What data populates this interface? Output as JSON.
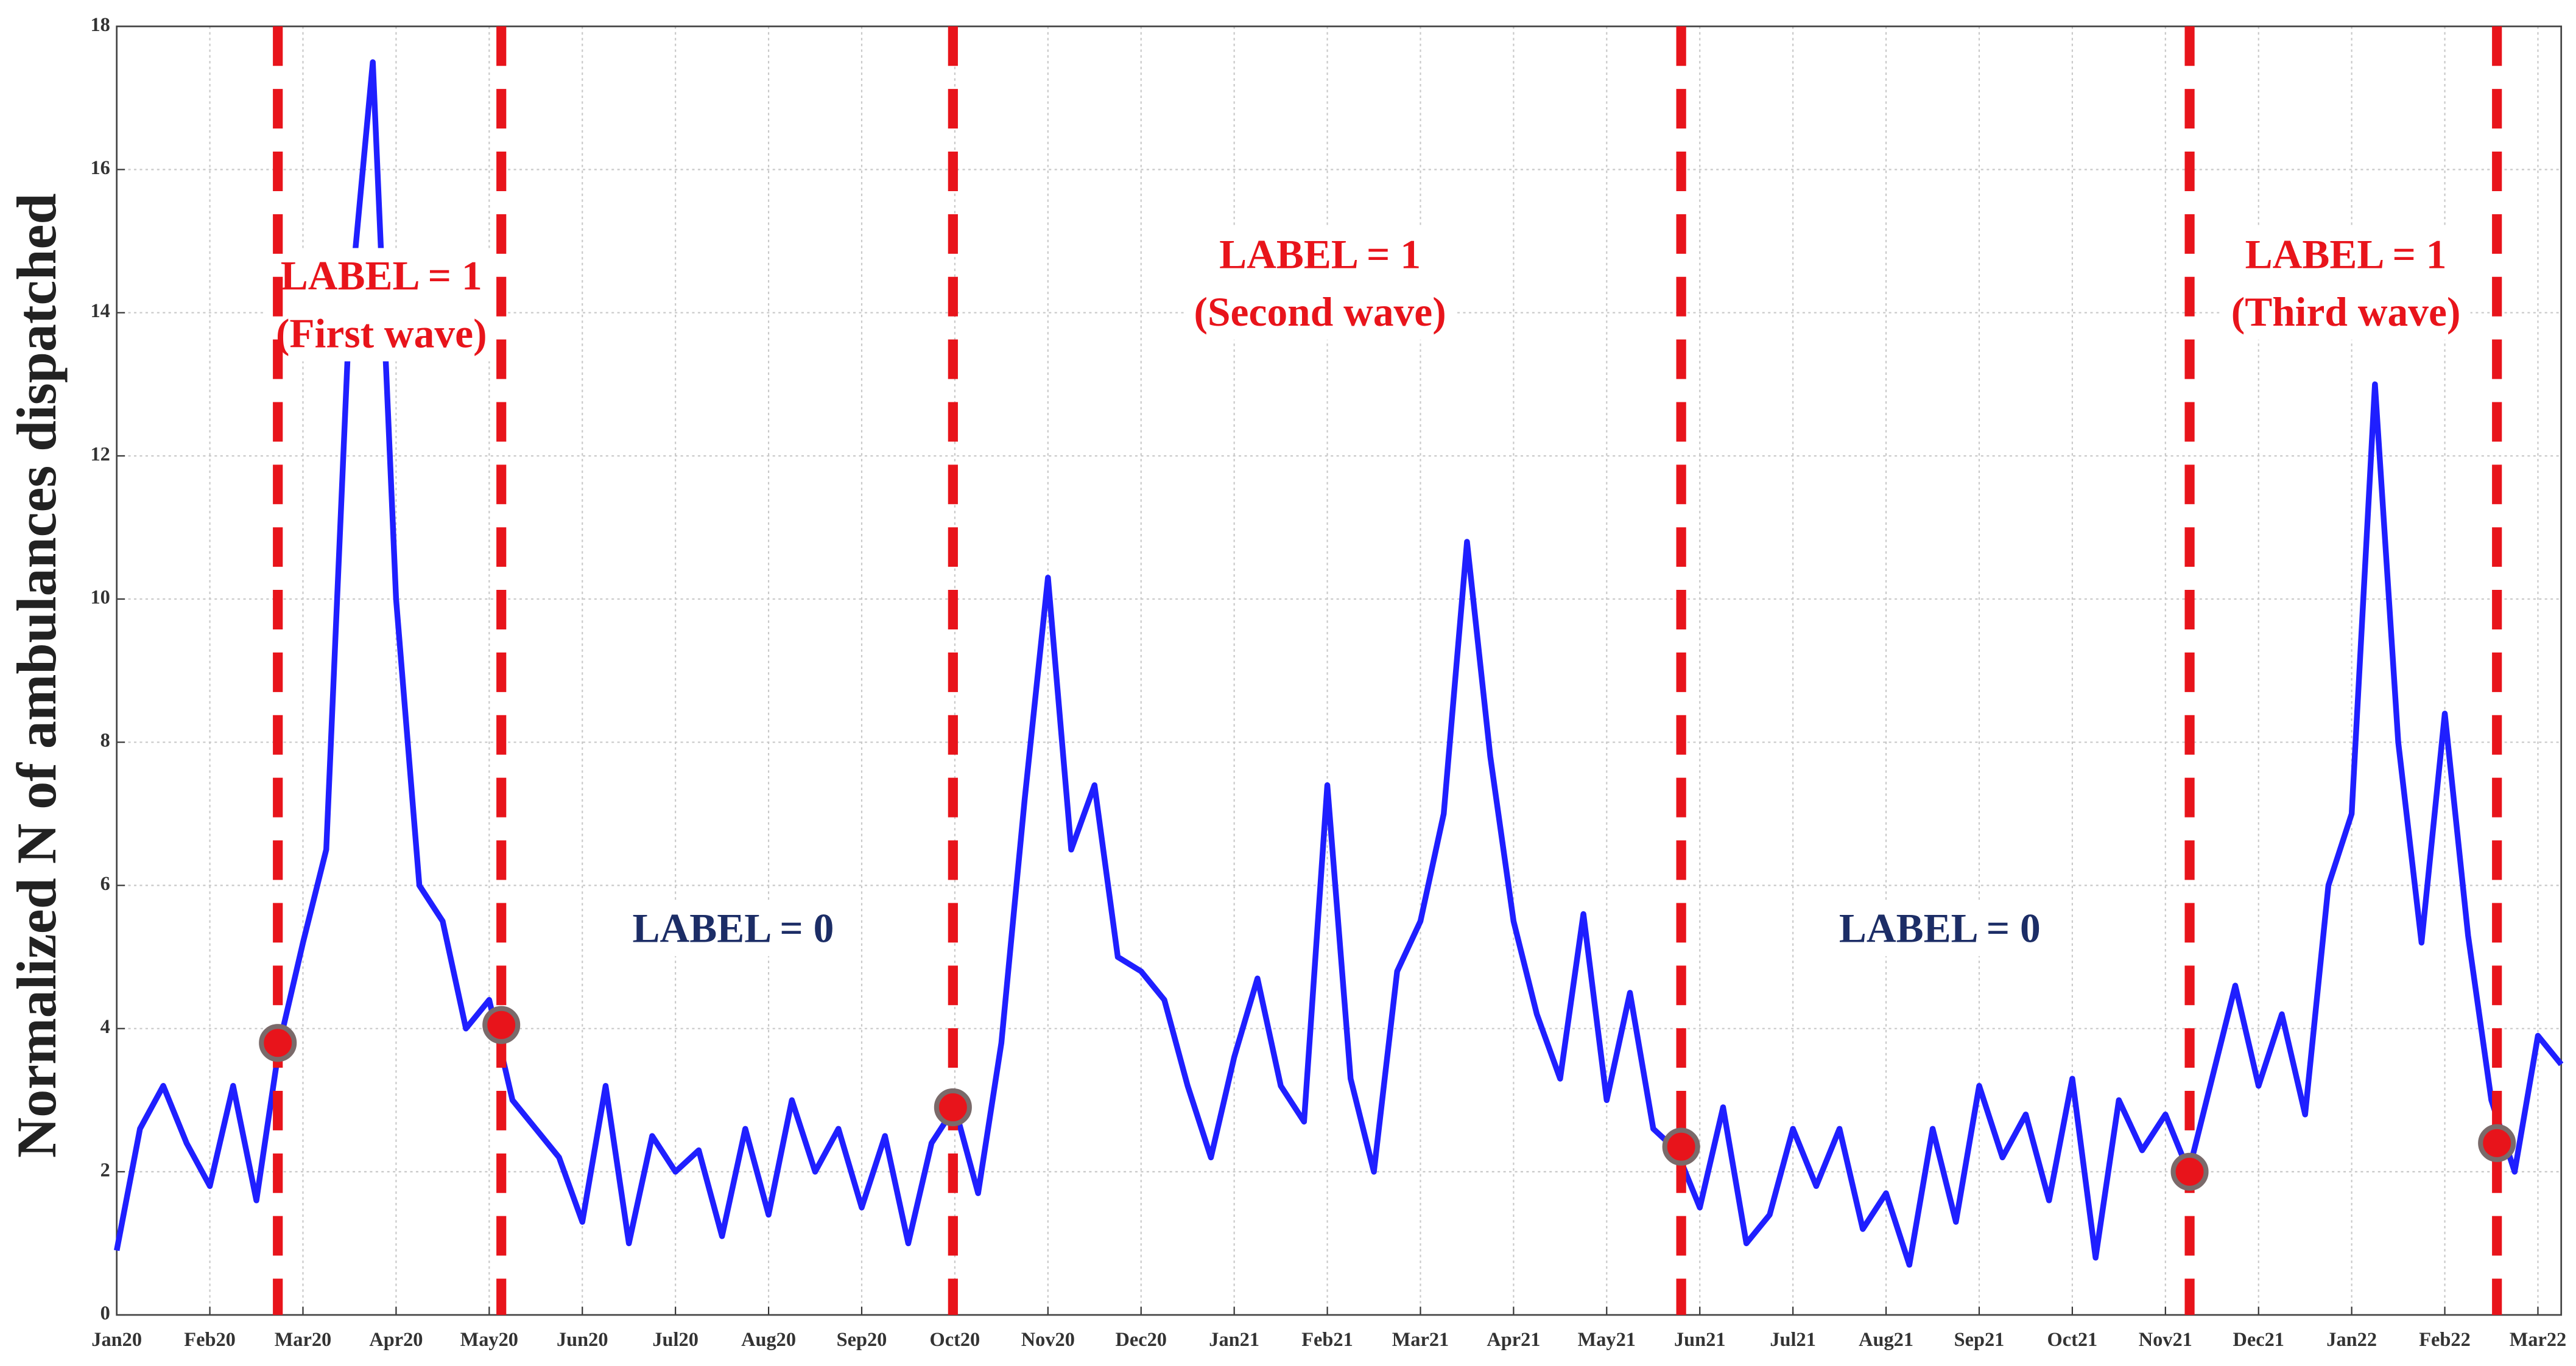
{
  "chart_data": {
    "type": "line",
    "ylabel": "Normalized N of ambulances dispatched",
    "color": "#1f1fff",
    "grid": true,
    "xlim": [
      0,
      26.25
    ],
    "ylim": [
      0,
      18
    ],
    "yticks": [
      0,
      2,
      4,
      6,
      8,
      10,
      12,
      14,
      16,
      18
    ],
    "xticks": [
      {
        "value": 0,
        "label": "Jan20"
      },
      {
        "value": 1,
        "label": "Feb20"
      },
      {
        "value": 2,
        "label": "Mar20"
      },
      {
        "value": 3,
        "label": "Apr20"
      },
      {
        "value": 4,
        "label": "May20"
      },
      {
        "value": 5,
        "label": "Jun20"
      },
      {
        "value": 6,
        "label": "Jul20"
      },
      {
        "value": 7,
        "label": "Aug20"
      },
      {
        "value": 8,
        "label": "Sep20"
      },
      {
        "value": 9,
        "label": "Oct20"
      },
      {
        "value": 10,
        "label": "Nov20"
      },
      {
        "value": 11,
        "label": "Dec20"
      },
      {
        "value": 12,
        "label": "Jan21"
      },
      {
        "value": 13,
        "label": "Feb21"
      },
      {
        "value": 14,
        "label": "Mar21"
      },
      {
        "value": 15,
        "label": "Apr21"
      },
      {
        "value": 16,
        "label": "May21"
      },
      {
        "value": 17,
        "label": "Jun21"
      },
      {
        "value": 18,
        "label": "Jul21"
      },
      {
        "value": 19,
        "label": "Aug21"
      },
      {
        "value": 20,
        "label": "Sep21"
      },
      {
        "value": 21,
        "label": "Oct21"
      },
      {
        "value": 22,
        "label": "Nov21"
      },
      {
        "value": 23,
        "label": "Dec21"
      },
      {
        "value": 24,
        "label": "Jan22"
      },
      {
        "value": 25,
        "label": "Feb22"
      },
      {
        "value": 26,
        "label": "Mar22"
      }
    ],
    "x": [
      0,
      0.25,
      0.5,
      0.75,
      1,
      1.25,
      1.5,
      1.75,
      2,
      2.25,
      2.5,
      2.75,
      3,
      3.25,
      3.5,
      3.75,
      4,
      4.25,
      4.5,
      4.75,
      5,
      5.25,
      5.5,
      5.75,
      6,
      6.25,
      6.5,
      6.75,
      7,
      7.25,
      7.5,
      7.75,
      8,
      8.25,
      8.5,
      8.75,
      9,
      9.25,
      9.5,
      9.75,
      10,
      10.25,
      10.5,
      10.75,
      11,
      11.25,
      11.5,
      11.75,
      12,
      12.25,
      12.5,
      12.75,
      13,
      13.25,
      13.5,
      13.75,
      14,
      14.25,
      14.5,
      14.75,
      15,
      15.25,
      15.5,
      15.75,
      16,
      16.25,
      16.5,
      16.75,
      17,
      17.25,
      17.5,
      17.75,
      18,
      18.25,
      18.5,
      18.75,
      19,
      19.25,
      19.5,
      19.75,
      20,
      20.25,
      20.5,
      20.75,
      21,
      21.25,
      21.5,
      21.75,
      22,
      22.25,
      22.5,
      22.75,
      23,
      23.25,
      23.5,
      23.75,
      24,
      24.25,
      24.5,
      24.75,
      25,
      25.25,
      25.5,
      25.75,
      26,
      26.25
    ],
    "values": [
      0.9,
      2.6,
      3.2,
      2.4,
      1.8,
      3.2,
      1.6,
      3.8,
      5.2,
      6.5,
      14,
      17.5,
      10,
      6,
      5.5,
      4.0,
      4.4,
      3.0,
      2.6,
      2.2,
      1.3,
      3.2,
      1.0,
      2.5,
      2.0,
      2.3,
      1.1,
      2.6,
      1.4,
      3.0,
      2.0,
      2.6,
      1.5,
      2.5,
      1.0,
      2.4,
      2.9,
      1.7,
      3.8,
      7.2,
      10.3,
      6.5,
      7.4,
      5.0,
      4.8,
      4.4,
      3.2,
      2.2,
      3.6,
      4.7,
      3.2,
      2.7,
      7.4,
      3.3,
      2.0,
      4.8,
      5.5,
      7.0,
      10.8,
      7.8,
      5.5,
      4.2,
      3.3,
      5.6,
      3.0,
      4.5,
      2.6,
      2.3,
      1.5,
      2.9,
      1.0,
      1.4,
      2.6,
      1.8,
      2.6,
      1.2,
      1.7,
      0.7,
      2.6,
      1.3,
      3.2,
      2.2,
      2.8,
      1.6,
      3.3,
      0.8,
      3.0,
      2.3,
      2.8,
      2.0,
      3.3,
      4.6,
      3.2,
      4.2,
      2.8,
      6.0,
      7.0,
      13.0,
      8.0,
      5.2,
      8.4,
      5.3,
      3.0,
      2.0,
      3.9,
      3.5
    ],
    "vlines": {
      "color": "#e8141b",
      "x": [
        1.73,
        4.13,
        8.98,
        16.8,
        22.26,
        25.56
      ]
    },
    "markers": {
      "color": "#e8141b",
      "x": [
        1.73,
        4.13,
        8.98,
        16.8,
        22.26,
        25.56
      ],
      "values": [
        3.8,
        4.05,
        2.9,
        2.35,
        2.0,
        2.4
      ]
    },
    "annotations": [
      {
        "color": "#e8141b",
        "lines": [
          "LABEL = 1",
          "(First wave)"
        ]
      },
      {
        "color": "#1c2d66",
        "lines": [
          "LABEL = 0"
        ]
      },
      {
        "color": "#e8141b",
        "lines": [
          "LABEL = 1",
          "(Second wave)"
        ]
      },
      {
        "color": "#1c2d66",
        "lines": [
          "LABEL = 0"
        ]
      },
      {
        "color": "#e8141b",
        "lines": [
          "LABEL = 1",
          "(Third wave)"
        ]
      }
    ]
  }
}
